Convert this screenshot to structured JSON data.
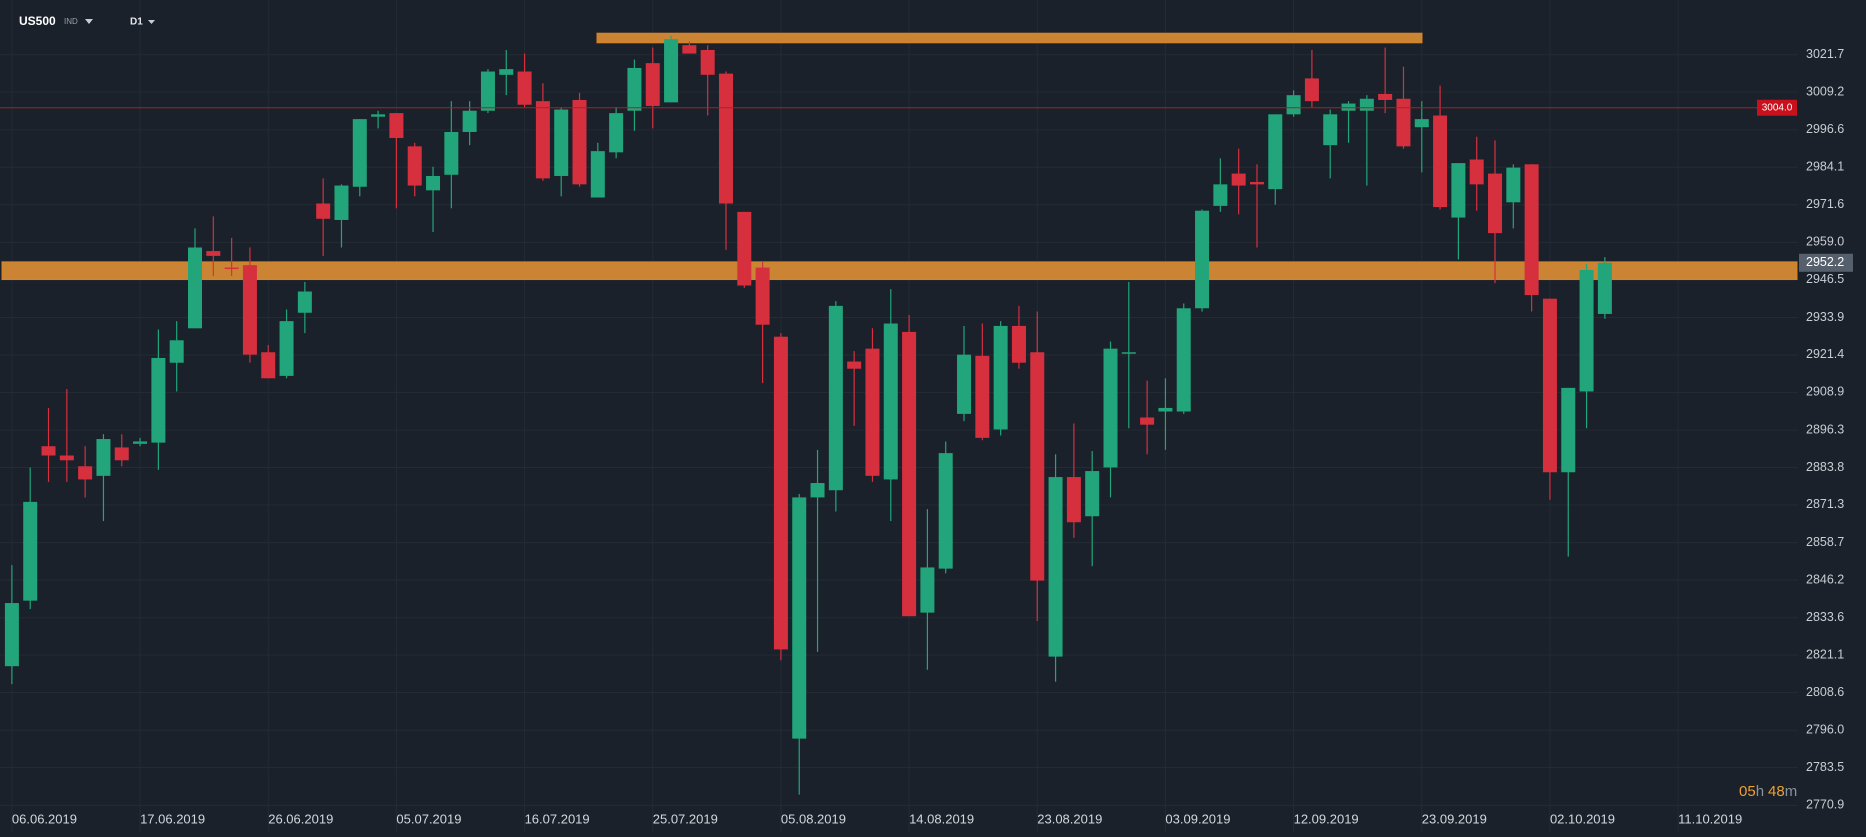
{
  "chart_data": {
    "type": "candlestick",
    "symbol": "US500",
    "market": "IND",
    "timeframe": "D1",
    "countdown": [
      "05",
      "h",
      "48",
      "m"
    ],
    "categories": [
      "06.06.2019",
      null,
      null,
      null,
      null,
      null,
      null,
      "17.06.2019",
      null,
      null,
      null,
      null,
      null,
      null,
      "26.06.2019",
      null,
      null,
      null,
      null,
      null,
      null,
      "05.07.2019",
      null,
      null,
      null,
      null,
      null,
      null,
      "16.07.2019",
      null,
      null,
      null,
      null,
      null,
      null,
      "25.07.2019",
      null,
      null,
      null,
      null,
      null,
      null,
      "05.08.2019",
      null,
      null,
      null,
      null,
      null,
      null,
      "14.08.2019",
      null,
      null,
      null,
      null,
      null,
      null,
      "23.08.2019",
      null,
      null,
      null,
      null,
      null,
      null,
      "03.09.2019",
      null,
      null,
      null,
      null,
      null,
      null,
      "12.09.2019",
      null,
      null,
      null,
      null,
      null,
      null,
      "23.09.2019",
      null,
      null,
      null,
      null,
      null,
      null,
      "02.10.2019",
      null,
      null,
      null,
      null,
      null,
      null,
      "11.10.2019"
    ],
    "open": [
      2817.4,
      2839.3,
      2890.9,
      2887.8,
      2884.2,
      2881.0,
      2890.5,
      2891.7,
      2892.1,
      2918.8,
      2930.3,
      2956.1,
      2950.6,
      2951.4,
      2922.3,
      2914.4,
      2935.5,
      2972.0,
      2966.5,
      2977.6,
      3001.0,
      3002.2,
      2991.1,
      2976.4,
      2981.6,
      2995.9,
      3003.0,
      3015.0,
      3016.1,
      3006.2,
      2981.2,
      3006.6,
      2974.0,
      2989.1,
      3003.0,
      3018.9,
      3005.8,
      3024.9,
      3023.3,
      3015.4,
      2969.2,
      2950.6,
      2927.5,
      2793.2,
      2873.8,
      2876.2,
      2919.2,
      2923.5,
      2879.8,
      2929.1,
      2835.3,
      2850.0,
      2901.7,
      2921.1,
      2896.5,
      2931.1,
      2922.3,
      2820.6,
      2880.6,
      2867.5,
      2883.8,
      2921.9,
      2900.5,
      2902.5,
      2902.5,
      2937.0,
      2971.2,
      2982.0,
      2979.2,
      2976.8,
      3001.8,
      3013.8,
      2991.5,
      3003.0,
      3003.0,
      3008.6,
      3007.0,
      2997.5,
      3001.4,
      2967.3,
      2986.7,
      2982.0,
      2972.4,
      2985.1,
      2940.2,
      2882.2,
      2909.2,
      2935.1,
      null,
      null,
      null,
      null
    ],
    "high": [
      2851.2,
      2883.8,
      2903.7,
      2910.0,
      2890.9,
      2894.9,
      2894.9,
      2893.7,
      2929.9,
      2932.7,
      2963.7,
      2967.7,
      2960.5,
      2957.3,
      2924.7,
      2936.6,
      2945.8,
      2980.4,
      2978.4,
      3000.2,
      3003.0,
      3002.2,
      2992.3,
      2984.3,
      3006.2,
      3006.2,
      3016.9,
      3023.3,
      3022.1,
      3012.2,
      3004.2,
      3009.0,
      2992.3,
      3004.2,
      3020.1,
      3024.1,
      3028.1,
      3026.1,
      3024.9,
      3016.1,
      2969.2,
      2952.5,
      2928.7,
      2875.0,
      2889.7,
      2939.4,
      2922.7,
      2930.3,
      2943.4,
      2934.7,
      2869.9,
      2892.5,
      2931.1,
      2931.9,
      2932.7,
      2937.8,
      2935.9,
      2888.2,
      2898.5,
      2889.3,
      2925.9,
      2945.8,
      2912.8,
      2913.6,
      2938.6,
      2970.0,
      2987.1,
      2990.3,
      2985.1,
      3001.8,
      3009.8,
      3023.3,
      3003.4,
      3006.2,
      3008.2,
      3024.1,
      3017.7,
      3006.2,
      3011.4,
      2985.5,
      2994.3,
      2993.1,
      2985.1,
      2985.1,
      2940.2,
      2910.4,
      2951.8,
      2954.1,
      null,
      null,
      null,
      null
    ],
    "low": [
      2811.4,
      2836.5,
      2879.0,
      2879.0,
      2873.8,
      2865.9,
      2884.2,
      2890.9,
      2883.0,
      2909.2,
      2930.3,
      2947.8,
      2947.8,
      2918.8,
      2913.6,
      2913.6,
      2928.7,
      2954.5,
      2957.3,
      2974.4,
      2997.1,
      2970.4,
      2974.4,
      2962.5,
      2970.4,
      2991.5,
      3002.2,
      3008.2,
      3004.2,
      2979.6,
      2974.4,
      2977.6,
      2974.0,
      2987.1,
      2996.3,
      2997.1,
      3005.8,
      3022.1,
      3001.4,
      2956.5,
      2943.8,
      2912.0,
      2819.4,
      2774.5,
      2822.2,
      2869.1,
      2897.7,
      2879.0,
      2865.9,
      2834.1,
      2816.2,
      2848.4,
      2899.3,
      2892.9,
      2894.5,
      2916.8,
      2832.5,
      2812.2,
      2860.3,
      2850.8,
      2873.8,
      2896.9,
      2888.2,
      2889.7,
      2901.7,
      2935.9,
      2969.2,
      2968.4,
      2957.3,
      2971.6,
      3001.0,
      3004.2,
      2980.4,
      2992.3,
      2978.0,
      3002.2,
      2990.3,
      2982.4,
      2970.0,
      2953.3,
      2969.6,
      2945.4,
      2963.7,
      2935.9,
      2873.0,
      2854.0,
      2896.9,
      2933.5,
      null,
      null,
      null,
      null
    ],
    "close": [
      2838.5,
      2872.3,
      2887.8,
      2886.2,
      2879.8,
      2893.3,
      2886.2,
      2892.5,
      2920.4,
      2926.3,
      2957.3,
      2954.5,
      2950.2,
      2921.5,
      2913.6,
      2932.7,
      2942.6,
      2966.9,
      2978.0,
      3000.2,
      3001.8,
      2993.9,
      2978.0,
      2981.2,
      2995.9,
      3003.0,
      3016.1,
      3016.9,
      3005.0,
      2980.4,
      3003.4,
      2978.4,
      2989.5,
      3002.2,
      3017.3,
      3004.6,
      3026.9,
      3022.1,
      3015.0,
      2972.0,
      2944.6,
      2931.5,
      2823.0,
      2873.8,
      2878.6,
      2937.8,
      2916.8,
      2881.0,
      2931.9,
      2834.1,
      2850.4,
      2888.6,
      2921.5,
      2893.7,
      2931.1,
      2918.8,
      2846.0,
      2880.6,
      2865.5,
      2882.6,
      2923.5,
      2922.3,
      2898.1,
      2903.7,
      2937.0,
      2969.6,
      2978.4,
      2978.0,
      2978.4,
      3001.8,
      3008.2,
      3006.2,
      3001.8,
      3005.4,
      3007.0,
      3006.6,
      2991.1,
      3000.2,
      2970.8,
      2985.5,
      2978.4,
      2962.1,
      2984.0,
      2941.4,
      2882.2,
      2910.4,
      2949.8,
      2952.2,
      null,
      null,
      null,
      null
    ],
    "up_color": "#22a57a",
    "down_color": "#d6303f",
    "ylim": [
      2762,
      3040
    ],
    "yticks": [
      3021.7,
      3009.2,
      2996.6,
      2984.1,
      2971.6,
      {
        "value": 2959,
        "label": "2959.0"
      },
      2946.5,
      2933.9,
      2921.4,
      2908.9,
      2896.3,
      2883.8,
      2871.3,
      2858.7,
      2846.2,
      2833.6,
      2821.1,
      2808.6,
      {
        "value": 2796,
        "label": "2796.0"
      },
      2783.5,
      2770.9
    ],
    "grid": true,
    "alert_line": {
      "value": 3004,
      "label": "3004.0"
    },
    "last_price": 2952.2,
    "zones": [
      {
        "low": 3025.7,
        "high": 3028.9
      },
      {
        "low": 2946.6,
        "high": 2952.5
      }
    ]
  }
}
